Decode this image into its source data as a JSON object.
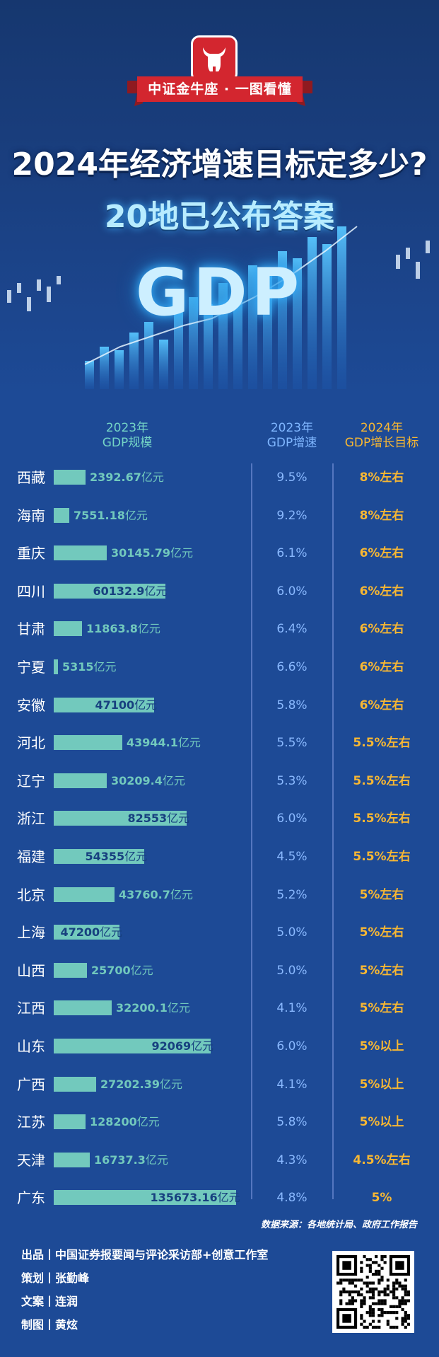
{
  "header": {
    "brand": "中证金牛座 · 一图看懂",
    "title_line1": "2024年经济增速目标定多少?",
    "title_line2": "20地已公布答案",
    "art_text": "GDP"
  },
  "table": {
    "gdp_header": "2023年\nGDP规模",
    "growth_header": "2023年\nGDP增速",
    "target_header": "2024年\nGDP增长目标",
    "unit": "亿元"
  },
  "chart_data": {
    "type": "bar",
    "categories": [
      "西藏",
      "海南",
      "重庆",
      "四川",
      "甘肃",
      "宁夏",
      "安徽",
      "河北",
      "辽宁",
      "浙江",
      "福建",
      "北京",
      "上海",
      "山西",
      "江西",
      "山东",
      "广西",
      "江苏",
      "天津",
      "广东"
    ],
    "series": [
      {
        "name": "2023年GDP规模",
        "values": [
          2392.67,
          7551.18,
          30145.79,
          60132.9,
          11863.8,
          5315,
          47100,
          43944.1,
          30209.4,
          82553,
          54355,
          43760.7,
          47200,
          25700,
          32200.1,
          92069,
          27202.39,
          128200,
          16737.3,
          135673.16
        ]
      }
    ],
    "value_labels": [
      "2392.67",
      "7551.18",
      "30145.79",
      "60132.9",
      "11863.8",
      "5315",
      "47100",
      "43944.1",
      "30209.4",
      "82553",
      "54355",
      "43760.7",
      "47200",
      "25700",
      "32200.1",
      "92069",
      "27202.39",
      "128200",
      "16737.3",
      "135673.16"
    ],
    "growth_2023": [
      "9.5%",
      "9.2%",
      "6.1%",
      "6.0%",
      "6.4%",
      "6.6%",
      "5.8%",
      "5.5%",
      "5.3%",
      "6.0%",
      "4.5%",
      "5.2%",
      "5.0%",
      "5.0%",
      "4.1%",
      "6.0%",
      "4.1%",
      "5.8%",
      "4.3%",
      "4.8%"
    ],
    "target_2024": [
      "8%左右",
      "8%左右",
      "6%左右",
      "6%左右",
      "6%左右",
      "6%左右",
      "6%左右",
      "5.5%左右",
      "5.5%左右",
      "5.5%左右",
      "5.5%左右",
      "5%左右",
      "5%左右",
      "5%左右",
      "5%左右",
      "5%以上",
      "5%以上",
      "5%以上",
      "4.5%左右",
      "5%"
    ],
    "bar_lengths": [
      45,
      22,
      75,
      158,
      40,
      6,
      142,
      97,
      75,
      188,
      128,
      86,
      93,
      47,
      82,
      222,
      60,
      45,
      51,
      258
    ]
  },
  "footer": {
    "source": "数据来源：各地统计局、政府工作报告",
    "credit_1": "出品丨中国证券报要闻与评论采访部+创意工作室",
    "credit_2": "策划丨张勤峰",
    "credit_3": "文案丨连润",
    "credit_4": "制图丨黄炫"
  },
  "colors": {
    "background": "#1d4a96",
    "bar": "#72c9bd",
    "growth": "#8ab9ff",
    "target": "#f7b733",
    "brand_red": "#d3262f"
  }
}
